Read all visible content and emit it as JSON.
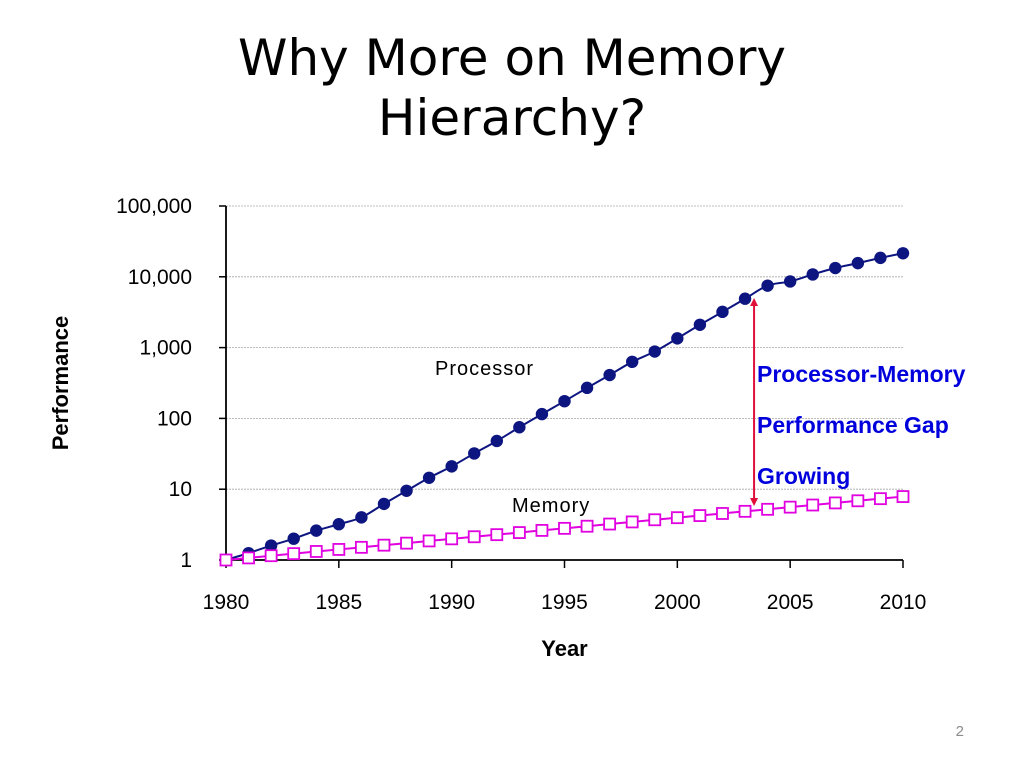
{
  "title_lines": [
    "Why More on Memory",
    "Hierarchy?"
  ],
  "page_number": "2",
  "colors": {
    "processor": "#0d1580",
    "memory": "#e000e0",
    "gap_arrow": "#e0103a",
    "gap_text": "#0000dd",
    "grid": "#a6a6a6"
  },
  "chart_data": {
    "type": "line",
    "ylabel": "Performance",
    "xlabel": "Year",
    "y_scale": "log",
    "ylim": [
      1,
      100000
    ],
    "xlim": [
      1980,
      2010
    ],
    "grid": true,
    "x_ticks": [
      "1980",
      "1985",
      "1990",
      "1995",
      "2000",
      "2005",
      "2010"
    ],
    "y_ticks": [
      {
        "value": 1,
        "label": "1"
      },
      {
        "value": 10,
        "label": "10"
      },
      {
        "value": 100,
        "label": "100"
      },
      {
        "value": 1000,
        "label": "1,000"
      },
      {
        "value": 10000,
        "label": "10,000"
      },
      {
        "value": 100000,
        "label": "100,000"
      }
    ],
    "x": [
      1980,
      1981,
      1982,
      1983,
      1984,
      1985,
      1986,
      1987,
      1988,
      1989,
      1990,
      1991,
      1992,
      1993,
      1994,
      1995,
      1996,
      1997,
      1998,
      1999,
      2000,
      2001,
      2002,
      2003,
      2004,
      2005,
      2006,
      2007,
      2008,
      2009,
      2010
    ],
    "series": [
      {
        "name": "Processor",
        "marker": "filled-circle",
        "values": [
          1,
          1.25,
          1.6,
          2.0,
          2.6,
          3.2,
          4.0,
          6.2,
          9.5,
          14.5,
          21,
          32,
          48,
          75,
          115,
          175,
          270,
          410,
          630,
          880,
          1350,
          2100,
          3200,
          4900,
          7500,
          8600,
          10800,
          13300,
          15600,
          18500,
          21500
        ]
      },
      {
        "name": "Memory",
        "marker": "open-square",
        "values": [
          1,
          1.07,
          1.15,
          1.23,
          1.32,
          1.41,
          1.51,
          1.62,
          1.73,
          1.86,
          1.99,
          2.13,
          2.28,
          2.44,
          2.62,
          2.8,
          3.0,
          3.22,
          3.45,
          3.7,
          3.96,
          4.24,
          4.54,
          4.87,
          5.2,
          5.58,
          5.98,
          6.4,
          6.86,
          7.35,
          7.87
        ]
      }
    ],
    "annotations": {
      "processor_label": "Processor",
      "memory_label": "Memory",
      "gap_text": [
        "Processor-Memory",
        "Performance Gap",
        "Growing"
      ],
      "gap_arrow_year": 2003.4
    }
  }
}
